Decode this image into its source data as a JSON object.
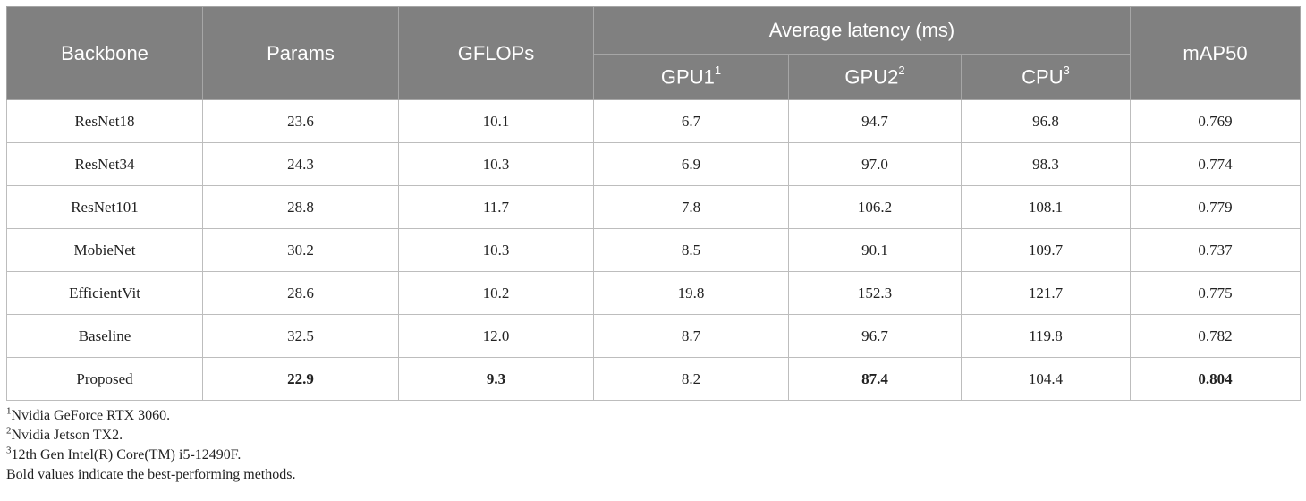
{
  "table": {
    "headers": {
      "backbone": "Backbone",
      "params": "Params",
      "gflops": "GFLOPs",
      "avg_latency": "Average latency (ms)",
      "gpu1": "GPU1",
      "gpu1_sup": "1",
      "gpu2": "GPU2",
      "gpu2_sup": "2",
      "cpu": "CPU",
      "cpu_sup": "3",
      "map50": "mAP50"
    },
    "rows": [
      {
        "backbone": "ResNet18",
        "params": "23.6",
        "gflops": "10.1",
        "gpu1": "6.7",
        "gpu2": "94.7",
        "cpu": "96.8",
        "map50": "0.769"
      },
      {
        "backbone": "ResNet34",
        "params": "24.3",
        "gflops": "10.3",
        "gpu1": "6.9",
        "gpu2": "97.0",
        "cpu": "98.3",
        "map50": "0.774"
      },
      {
        "backbone": "ResNet101",
        "params": "28.8",
        "gflops": "11.7",
        "gpu1": "7.8",
        "gpu2": "106.2",
        "cpu": "108.1",
        "map50": "0.779"
      },
      {
        "backbone": "MobieNet",
        "params": "30.2",
        "gflops": "10.3",
        "gpu1": "8.5",
        "gpu2": "90.1",
        "cpu": "109.7",
        "map50": "0.737"
      },
      {
        "backbone": "EfficientVit",
        "params": "28.6",
        "gflops": "10.2",
        "gpu1": "19.8",
        "gpu2": "152.3",
        "cpu": "121.7",
        "map50": "0.775"
      },
      {
        "backbone": "Baseline",
        "params": "32.5",
        "gflops": "12.0",
        "gpu1": "8.7",
        "gpu2": "96.7",
        "cpu": "119.8",
        "map50": "0.782"
      },
      {
        "backbone": "Proposed",
        "params": "22.9",
        "gflops": "9.3",
        "gpu1": "8.2",
        "gpu2": "87.4",
        "cpu": "104.4",
        "map50": "0.804"
      }
    ]
  },
  "footnotes": {
    "n1_mark": "1",
    "n1_text": "Nvidia GeForce RTX 3060.",
    "n2_mark": "2",
    "n2_text": "Nvidia Jetson TX2.",
    "n3_mark": "3",
    "n3_text": "12th Gen Intel(R) Core(TM) i5-12490F.",
    "bold_note": "Bold values indicate the best-performing methods."
  }
}
